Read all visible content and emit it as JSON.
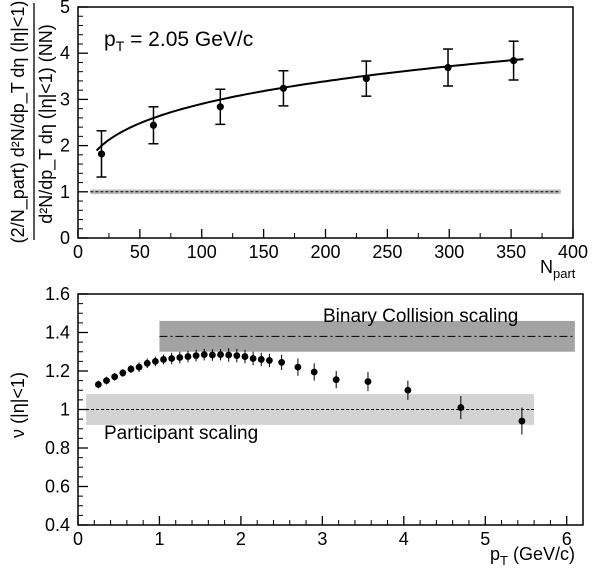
{
  "chart_data": [
    {
      "type": "scatter",
      "annotation": {
        "base": "p",
        "sub": "T",
        "rest": " = 2.05 GeV/c"
      },
      "xlabel": {
        "base": "N",
        "sub": "part"
      },
      "ylabel": {
        "numerator": "(2/N_part) d²N/dp_T dη (|η|<1)",
        "denominator": "d²N/dp_T dη (|η|<1) (NN)"
      },
      "xlim": [
        0,
        400
      ],
      "ylim": [
        0,
        5
      ],
      "xticks": [
        0,
        50,
        100,
        150,
        200,
        250,
        300,
        350,
        400
      ],
      "yticks": [
        0,
        1,
        2,
        3,
        4,
        5
      ],
      "band": {
        "y": 1.0,
        "lo": 0.95,
        "hi": 1.05,
        "xmin": 10,
        "xmax": 390,
        "color": "#bdbdbd"
      },
      "series": [
        {
          "x": [
            19,
            61,
            115,
            166,
            233,
            299,
            352
          ],
          "y": [
            1.82,
            2.44,
            2.84,
            3.24,
            3.45,
            3.69,
            3.84
          ],
          "err_lo": [
            0.13,
            0.18,
            0.22,
            0.2,
            0.22,
            0.22,
            0.22
          ],
          "err_hi": [
            0.13,
            0.18,
            0.22,
            0.2,
            0.22,
            0.22,
            0.22
          ],
          "sys_lo": [
            0.5,
            0.4,
            0.38,
            0.38,
            0.38,
            0.4,
            0.42
          ],
          "sys_hi": [
            0.5,
            0.4,
            0.38,
            0.38,
            0.38,
            0.4,
            0.42
          ]
        }
      ],
      "fit": {
        "a": 1.03,
        "p": 0.225,
        "x_from": 15,
        "x_to": 360
      }
    },
    {
      "type": "scatter",
      "xlabel": {
        "base": "p",
        "sub": "T",
        "rest": " (GeV/c)"
      },
      "ylabel": "ν (|η|<1)",
      "xlim": [
        0,
        6.2
      ],
      "ylim": [
        0.4,
        1.6
      ],
      "xticks": [
        0,
        1,
        2,
        3,
        4,
        5,
        6
      ],
      "yticks": [
        0.4,
        0.6,
        0.8,
        1.0,
        1.2,
        1.4,
        1.6
      ],
      "ytick_labels": [
        "0.4",
        "0.6",
        "0.8",
        "1",
        "1.2",
        "1.4",
        "1.6"
      ],
      "bands": [
        {
          "label": "Binary Collision scaling",
          "y": 1.38,
          "lo": 1.3,
          "hi": 1.46,
          "xmin": 1.0,
          "xmax": 6.1,
          "color": "#a3a3a3",
          "line": "dashdot"
        },
        {
          "label": "Participant scaling",
          "y": 1.0,
          "lo": 0.92,
          "hi": 1.08,
          "xmin": 0.1,
          "xmax": 5.6,
          "color": "#d3d3d3",
          "line": "dashed"
        }
      ],
      "series": [
        {
          "x": [
            0.25,
            0.35,
            0.45,
            0.55,
            0.65,
            0.75,
            0.85,
            0.95,
            1.05,
            1.15,
            1.25,
            1.35,
            1.45,
            1.55,
            1.65,
            1.75,
            1.85,
            1.95,
            2.05,
            2.15,
            2.25,
            2.35,
            2.5,
            2.7,
            2.9,
            3.17,
            3.56,
            4.05,
            4.7,
            5.45
          ],
          "y": [
            1.13,
            1.15,
            1.17,
            1.19,
            1.21,
            1.22,
            1.24,
            1.25,
            1.26,
            1.265,
            1.27,
            1.275,
            1.28,
            1.285,
            1.283,
            1.285,
            1.283,
            1.28,
            1.275,
            1.265,
            1.26,
            1.255,
            1.245,
            1.22,
            1.195,
            1.155,
            1.145,
            1.1,
            1.01,
            0.94
          ],
          "err": [
            0.02,
            0.02,
            0.02,
            0.02,
            0.02,
            0.025,
            0.025,
            0.025,
            0.025,
            0.03,
            0.03,
            0.03,
            0.03,
            0.03,
            0.03,
            0.03,
            0.035,
            0.035,
            0.035,
            0.035,
            0.035,
            0.035,
            0.04,
            0.045,
            0.045,
            0.045,
            0.05,
            0.05,
            0.06,
            0.07
          ]
        }
      ]
    }
  ]
}
